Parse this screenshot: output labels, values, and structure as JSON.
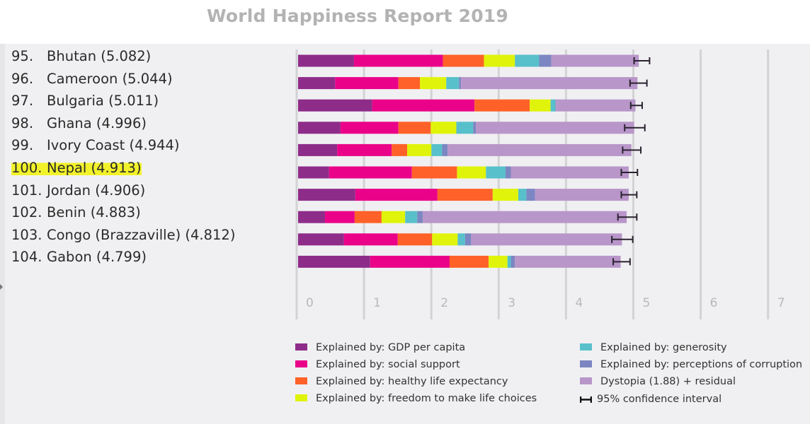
{
  "chart_data": {
    "type": "bar",
    "orientation": "horizontal",
    "stacked": true,
    "title": "World Happiness Report 2019",
    "xlabel": "",
    "ylabel": "",
    "xlim": [
      0,
      7
    ],
    "x_ticks": [
      "0",
      "1",
      "2",
      "3",
      "4",
      "5",
      "6",
      "7"
    ],
    "grid": true,
    "highlighted_category": "100. Nepal (4.913)",
    "categories": [
      {
        "rank": "95.",
        "name": "Bhutan (5.082)"
      },
      {
        "rank": "96.",
        "name": "Cameroon (5.044)"
      },
      {
        "rank": "97.",
        "name": "Bulgaria (5.011)"
      },
      {
        "rank": "98.",
        "name": "Ghana (4.996)"
      },
      {
        "rank": "99.",
        "name": "Ivory Coast (4.944)"
      },
      {
        "rank": "100.",
        "name": "Nepal (4.913)"
      },
      {
        "rank": "101.",
        "name": "Jordan (4.906)"
      },
      {
        "rank": "102.",
        "name": "Benin (4.883)"
      },
      {
        "rank": "103.",
        "name": "Congo (Brazzaville) (4.812)"
      },
      {
        "rank": "104.",
        "name": "Gabon (4.799)"
      }
    ],
    "scores": [
      5.082,
      5.044,
      5.011,
      4.996,
      4.944,
      4.913,
      4.906,
      4.883,
      4.812,
      4.799
    ],
    "series": [
      {
        "name": "Explained by: GDP per capita",
        "color": "#8e2c8a",
        "values": [
          0.83,
          0.55,
          1.1,
          0.63,
          0.58,
          0.46,
          0.85,
          0.4,
          0.68,
          1.07
        ]
      },
      {
        "name": "Explained by: social support",
        "color": "#ea0389",
        "values": [
          1.32,
          0.94,
          1.52,
          0.86,
          0.81,
          1.23,
          1.22,
          0.44,
          0.8,
          1.18
        ]
      },
      {
        "name": "Explained by: healthy life expectancy",
        "color": "#ff6128",
        "values": [
          0.61,
          0.32,
          0.82,
          0.48,
          0.23,
          0.67,
          0.82,
          0.4,
          0.51,
          0.58
        ]
      },
      {
        "name": "Explained by: freedom to make life choices",
        "color": "#dff40a",
        "values": [
          0.46,
          0.39,
          0.31,
          0.38,
          0.36,
          0.43,
          0.38,
          0.35,
          0.38,
          0.28
        ]
      },
      {
        "name": "Explained by: generosity",
        "color": "#58c0ca",
        "values": [
          0.36,
          0.19,
          0.07,
          0.25,
          0.16,
          0.29,
          0.12,
          0.18,
          0.11,
          0.05
        ]
      },
      {
        "name": "Explained by: perceptions of corruption",
        "color": "#7c86c2",
        "values": [
          0.18,
          0.03,
          0.01,
          0.04,
          0.08,
          0.08,
          0.13,
          0.08,
          0.09,
          0.06
        ]
      },
      {
        "name": "Dystopia (1.88) + residual",
        "color": "#b896c9",
        "values": [
          1.3,
          2.62,
          1.18,
          2.35,
          2.73,
          1.75,
          1.39,
          3.03,
          2.24,
          1.57
        ]
      }
    ],
    "confidence_interval": {
      "name": "95% confidence interval",
      "low": [
        4.99,
        4.93,
        4.94,
        4.85,
        4.82,
        4.8,
        4.8,
        4.75,
        4.66,
        4.68
      ],
      "high": [
        5.22,
        5.18,
        5.11,
        5.15,
        5.09,
        5.04,
        5.03,
        5.03,
        4.97,
        4.93
      ]
    },
    "legend": {
      "placement": "bottom",
      "items": [
        {
          "label": "Explained by: GDP per capita",
          "color": "#8e2c8a"
        },
        {
          "label": "Explained by: social support",
          "color": "#ea0389"
        },
        {
          "label": "Explained by: healthy life expectancy",
          "color": "#ff6128"
        },
        {
          "label": "Explained by: freedom to make life choices",
          "color": "#dff40a"
        },
        {
          "label": "Explained by: generosity",
          "color": "#58c0ca"
        },
        {
          "label": "Explained by: perceptions of corruption",
          "color": "#7c86c2"
        },
        {
          "label": "Dystopia (1.88) + residual",
          "color": "#b896c9"
        },
        {
          "label": "95% confidence interval",
          "color": "#1a1a1a",
          "icon": "error-bar"
        }
      ]
    }
  }
}
